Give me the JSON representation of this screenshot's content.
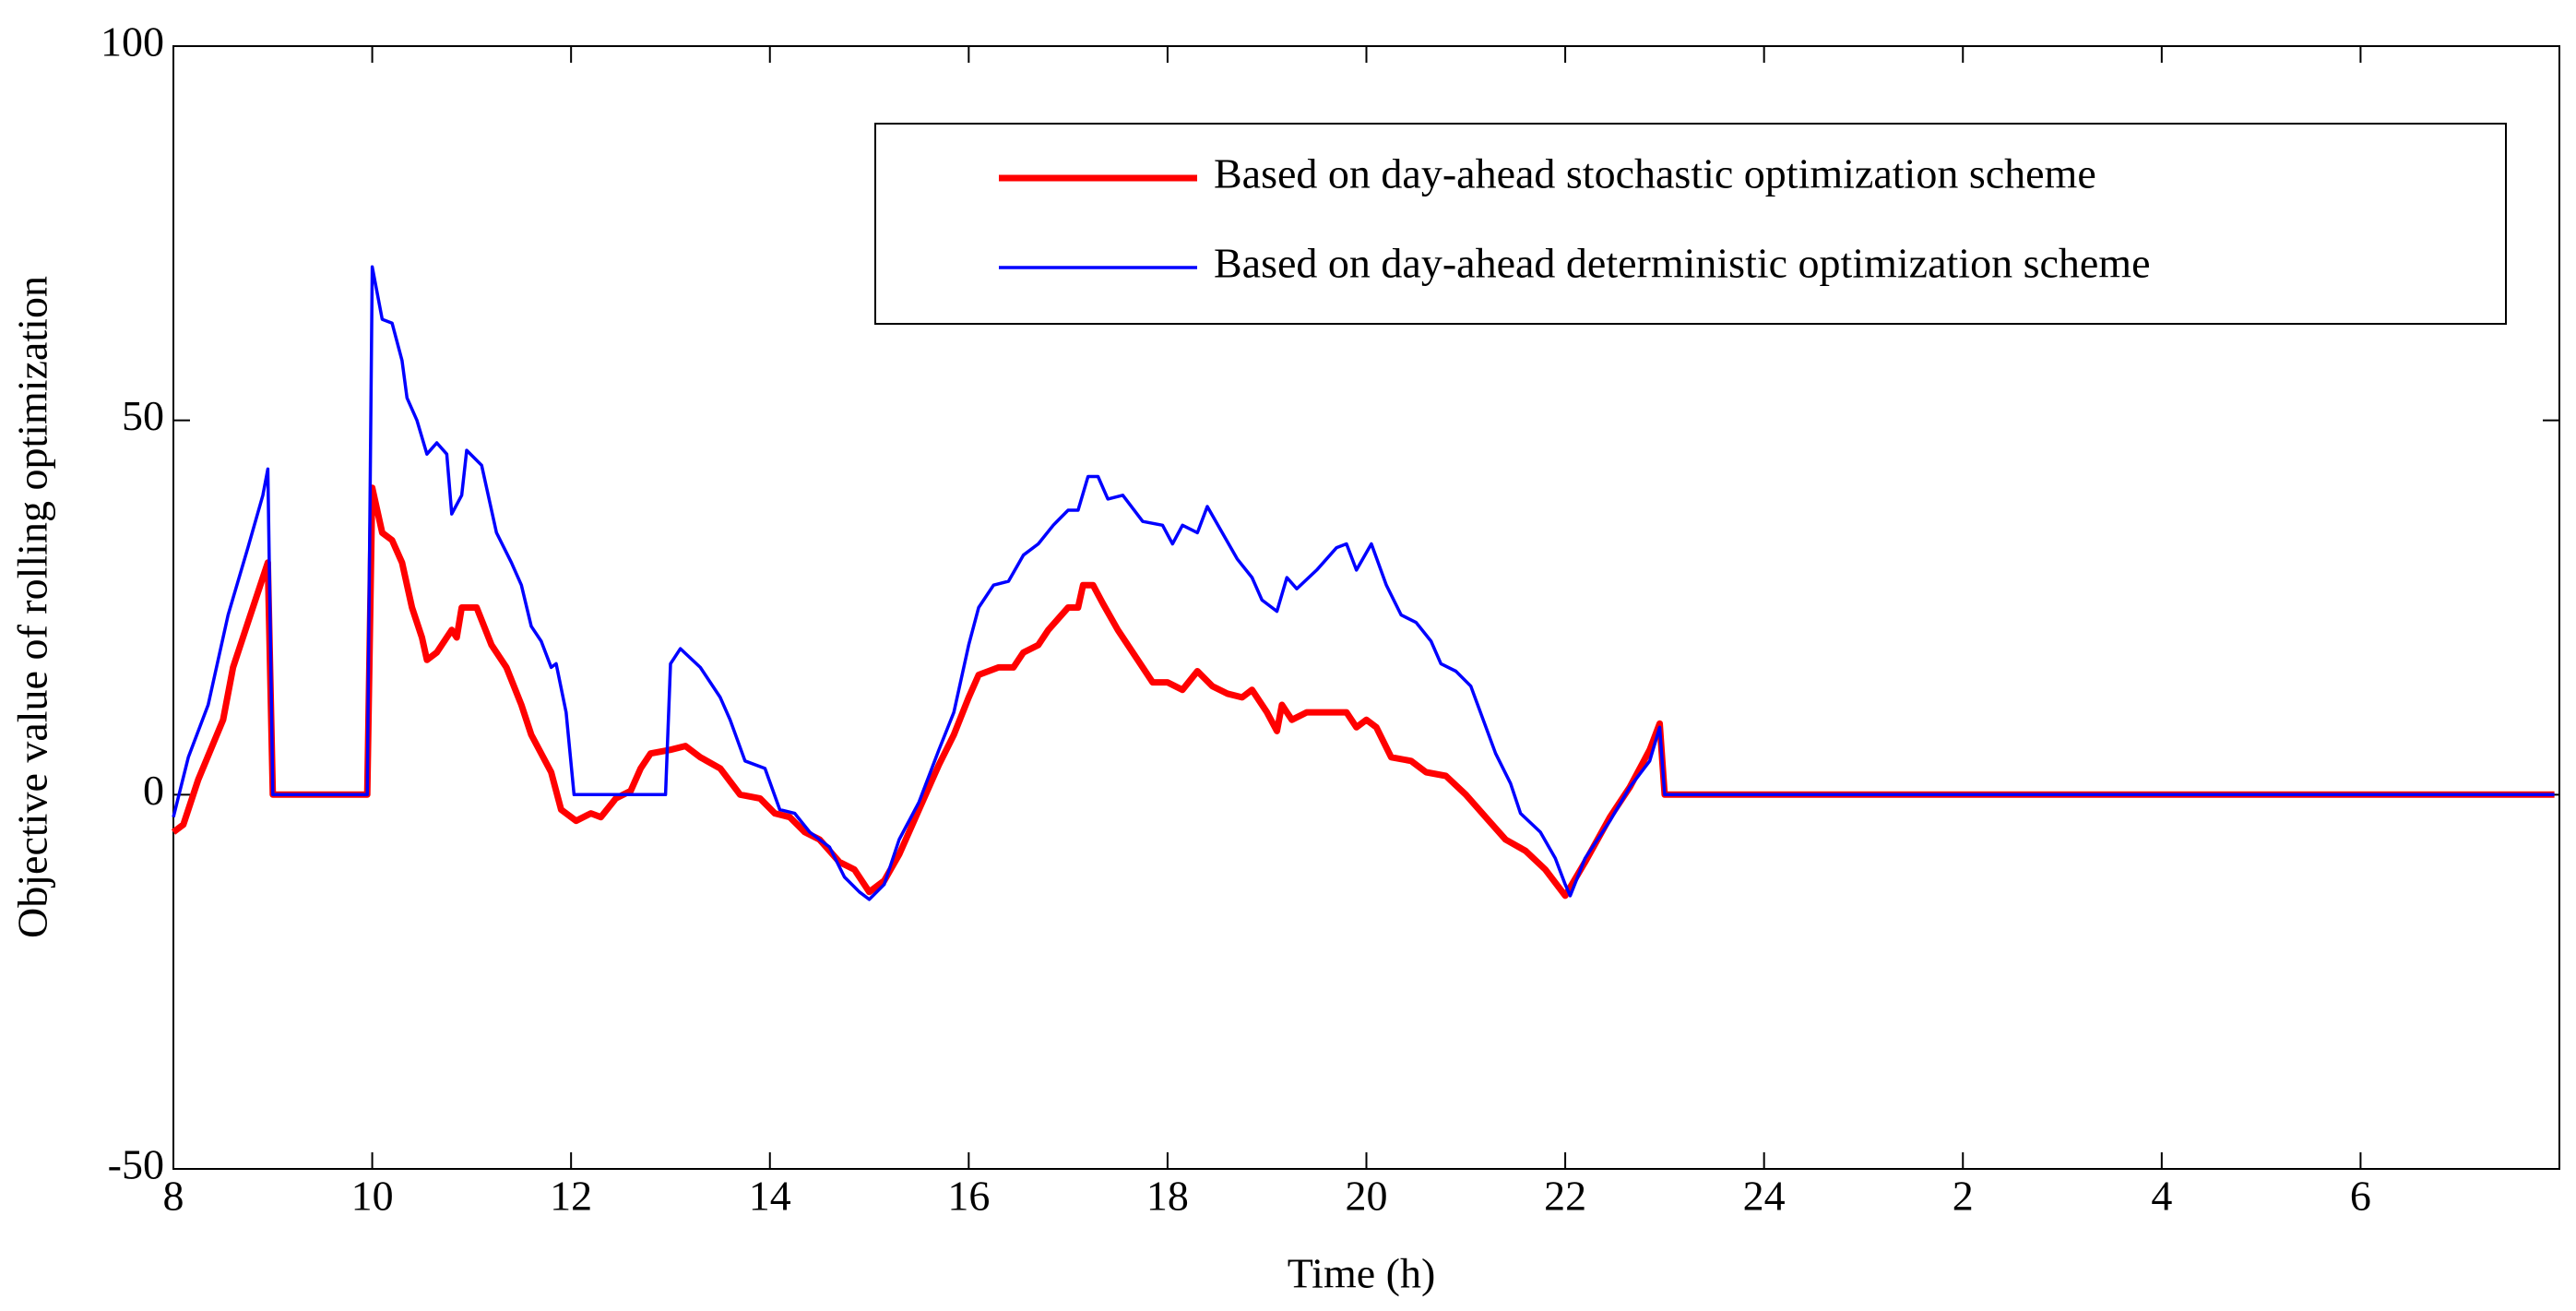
{
  "chart_data": {
    "type": "line",
    "xlabel": "Time (h)",
    "ylabel": "Objective value of rolling optimization",
    "xlim": [
      8,
      32
    ],
    "ylim": [
      -50,
      100
    ],
    "xticks": [
      8,
      10,
      12,
      14,
      16,
      18,
      20,
      22,
      24,
      {
        "value": 26,
        "label": "2"
      },
      {
        "value": 28,
        "label": "4"
      },
      {
        "value": 30,
        "label": "6"
      }
    ],
    "yticks": [
      -50,
      0,
      50,
      100
    ],
    "legend": "upper right",
    "series": [
      {
        "name": "Based on day-ahead stochastic optimization scheme",
        "color": "#ff0000",
        "width": 7,
        "x": [
          8.0,
          8.1,
          8.25,
          8.5,
          8.6,
          8.75,
          8.9,
          8.95,
          9.0,
          9.95,
          10.0,
          10.1,
          10.2,
          10.3,
          10.4,
          10.5,
          10.55,
          10.65,
          10.8,
          10.85,
          10.9,
          11.05,
          11.2,
          11.35,
          11.5,
          11.6,
          11.8,
          11.9,
          12.05,
          12.2,
          12.3,
          12.45,
          12.6,
          12.7,
          12.8,
          13.0,
          13.15,
          13.3,
          13.5,
          13.7,
          13.9,
          14.05,
          14.2,
          14.35,
          14.5,
          14.7,
          14.85,
          15.0,
          15.15,
          15.3,
          15.5,
          15.7,
          15.85,
          16.0,
          16.1,
          16.3,
          16.45,
          16.55,
          16.7,
          16.8,
          17.0,
          17.1,
          17.15,
          17.25,
          17.35,
          17.5,
          17.7,
          17.85,
          18.0,
          18.15,
          18.3,
          18.45,
          18.6,
          18.75,
          18.85,
          19.0,
          19.1,
          19.15,
          19.25,
          19.4,
          19.6,
          19.8,
          19.9,
          20.0,
          20.1,
          20.25,
          20.45,
          20.6,
          20.8,
          21.0,
          21.2,
          21.4,
          21.6,
          21.8,
          22.0,
          22.2,
          22.45,
          22.65,
          22.85,
          22.95,
          23.0,
          31.95
        ],
        "values": [
          -5,
          -4,
          2,
          10,
          17,
          23,
          29,
          31,
          0,
          0,
          41,
          35,
          34,
          31,
          25,
          21,
          18,
          19,
          22,
          21,
          25,
          25,
          20,
          17,
          12,
          8,
          3,
          -2,
          -3.5,
          -2.5,
          -3,
          -0.5,
          0.5,
          3.5,
          5.5,
          6,
          6.5,
          5,
          3.5,
          0,
          -0.5,
          -2.5,
          -3,
          -5,
          -6,
          -9,
          -10,
          -13,
          -11.5,
          -8,
          -2,
          4,
          8,
          13,
          16,
          17,
          17,
          19,
          20,
          22,
          25,
          25,
          28,
          28,
          25.5,
          22,
          18,
          15,
          15,
          14,
          16.5,
          14.5,
          13.5,
          13,
          14,
          11,
          8.5,
          12,
          10,
          11,
          11,
          11,
          9,
          10,
          9,
          5,
          4.5,
          3,
          2.5,
          0,
          -3,
          -6,
          -7.5,
          -10,
          -13.5,
          -9,
          -3,
          1,
          6,
          9.5,
          0,
          0
        ]
      },
      {
        "name": "Based on day-ahead deterministic optimization scheme",
        "color": "#0000ff",
        "width": 3.5,
        "x": [
          8.0,
          8.15,
          8.35,
          8.55,
          8.75,
          8.9,
          8.95,
          9.0,
          9.95,
          10.0,
          10.1,
          10.2,
          10.3,
          10.35,
          10.45,
          10.55,
          10.65,
          10.75,
          10.8,
          10.9,
          10.95,
          11.1,
          11.25,
          11.4,
          11.5,
          11.6,
          11.7,
          11.8,
          11.85,
          11.95,
          12.03,
          12.95,
          13.0,
          13.1,
          13.3,
          13.5,
          13.6,
          13.75,
          13.95,
          14.1,
          14.25,
          14.4,
          14.6,
          14.75,
          14.9,
          15.0,
          15.15,
          15.3,
          15.5,
          15.7,
          15.85,
          16.0,
          16.1,
          16.25,
          16.4,
          16.55,
          16.7,
          16.85,
          17.0,
          17.1,
          17.2,
          17.3,
          17.4,
          17.55,
          17.75,
          17.95,
          18.05,
          18.15,
          18.3,
          18.4,
          18.55,
          18.7,
          18.85,
          18.95,
          19.1,
          19.2,
          19.3,
          19.5,
          19.7,
          19.8,
          19.9,
          20.05,
          20.2,
          20.35,
          20.5,
          20.65,
          20.75,
          20.9,
          21.05,
          21.3,
          21.45,
          21.55,
          21.75,
          21.9,
          22.0,
          22.05,
          22.2,
          22.45,
          22.65,
          22.85,
          22.95,
          23.0,
          31.95
        ],
        "values": [
          -3,
          5,
          12,
          24,
          33,
          40,
          43.5,
          0,
          0,
          70.5,
          63.5,
          63,
          58,
          53,
          50,
          45.5,
          47,
          45.5,
          37.5,
          40,
          46,
          44,
          35,
          31,
          28,
          22.5,
          20.5,
          17,
          17.5,
          11,
          0,
          0,
          17.5,
          19.5,
          17,
          13,
          10,
          4.5,
          3.5,
          -2,
          -2.5,
          -5,
          -7,
          -11,
          -13,
          -14,
          -12,
          -6,
          -1,
          6,
          11,
          20,
          25,
          28,
          28.5,
          32,
          33.5,
          36,
          38,
          38,
          42.5,
          42.5,
          39.5,
          40,
          36.5,
          36,
          33.5,
          36,
          35,
          38.5,
          35,
          31.5,
          29,
          26,
          24.5,
          29,
          27.5,
          30,
          33,
          33.5,
          30,
          33.5,
          28,
          24,
          23,
          20.5,
          17.5,
          16.5,
          14.5,
          5.5,
          1.5,
          -2.5,
          -5,
          -8.5,
          -12,
          -13.5,
          -8.5,
          -3.5,
          1,
          4.5,
          9,
          0,
          0
        ]
      }
    ]
  }
}
